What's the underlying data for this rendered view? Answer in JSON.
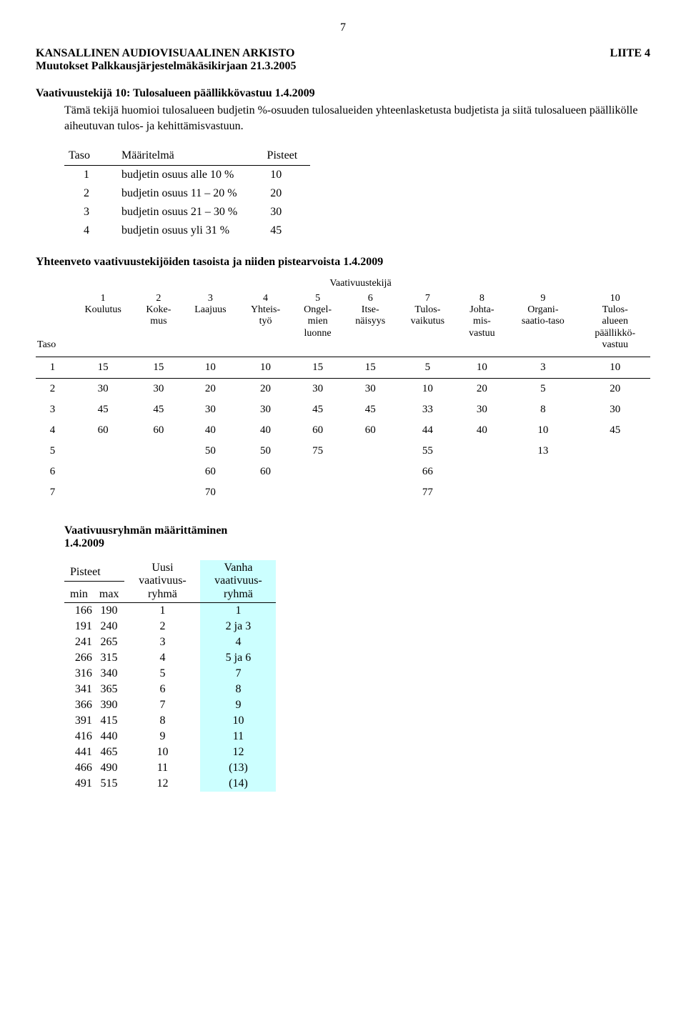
{
  "page_number": "7",
  "header": {
    "org": "KANSALLINEN AUDIOVISUAALINEN ARKISTO",
    "annex": "LIITE 4",
    "subtitle": "Muutokset Palkkausjärjestelmäkäsikirjaan 21.3.2005"
  },
  "section": {
    "heading": "Vaativuustekijä 10: Tulosalueen päällikkövastuu 1.4.2009",
    "body": "Tämä tekijä huomioi tulosalueen budjetin %-osuuden tulosalueiden yhteenlasketusta budjetista ja siitä tulosalueen päällikölle aiheutuvan tulos- ja kehittämisvastuun."
  },
  "levels_table": {
    "headers": {
      "taso": "Taso",
      "maaritelma": "Määritelmä",
      "pisteet": "Pisteet"
    },
    "rows": [
      {
        "taso": "1",
        "maaritelma": "budjetin osuus alle 10 %",
        "pisteet": "10"
      },
      {
        "taso": "2",
        "maaritelma": "budjetin osuus 11 – 20 %",
        "pisteet": "20"
      },
      {
        "taso": "3",
        "maaritelma": "budjetin osuus 21 – 30 %",
        "pisteet": "30"
      },
      {
        "taso": "4",
        "maaritelma": "budjetin osuus yli 31 %",
        "pisteet": "45"
      }
    ]
  },
  "summary": {
    "heading": "Yhteenveto vaativuustekijöiden tasoista ja niiden pistearvoista 1.4.2009",
    "group_label": "Vaativuustekijä",
    "taso_label": "Taso",
    "columns": [
      {
        "num": "1",
        "label": "Koulutus"
      },
      {
        "num": "2",
        "label": "Koke-\nmus"
      },
      {
        "num": "3",
        "label": "Laajuus"
      },
      {
        "num": "4",
        "label": "Yhteis-\ntyö"
      },
      {
        "num": "5",
        "label": "Ongel-\nmien\nluonne"
      },
      {
        "num": "6",
        "label": "Itse-\nnäisyys"
      },
      {
        "num": "7",
        "label": "Tulos-\nvaikutus"
      },
      {
        "num": "8",
        "label": "Johta-\nmis-\nvastuu"
      },
      {
        "num": "9",
        "label": "Organi-\nsaatio-taso"
      },
      {
        "num": "10",
        "label": "Tulos-\nalueen\npäällikkö-\nvastuu"
      }
    ],
    "rows": [
      {
        "taso": "1",
        "vals": [
          "15",
          "15",
          "10",
          "10",
          "15",
          "15",
          "5",
          "10",
          "3",
          "10"
        ]
      },
      {
        "taso": "2",
        "vals": [
          "30",
          "30",
          "20",
          "20",
          "30",
          "30",
          "10",
          "20",
          "5",
          "20"
        ]
      },
      {
        "taso": "3",
        "vals": [
          "45",
          "45",
          "30",
          "30",
          "45",
          "45",
          "33",
          "30",
          "8",
          "30"
        ]
      },
      {
        "taso": "4",
        "vals": [
          "60",
          "60",
          "40",
          "40",
          "60",
          "60",
          "44",
          "40",
          "10",
          "45"
        ]
      },
      {
        "taso": "5",
        "vals": [
          "",
          "",
          "50",
          "50",
          "75",
          "",
          "55",
          "",
          "13",
          ""
        ]
      },
      {
        "taso": "6",
        "vals": [
          "",
          "",
          "60",
          "60",
          "",
          "",
          "66",
          "",
          "",
          ""
        ]
      },
      {
        "taso": "7",
        "vals": [
          "",
          "",
          "70",
          "",
          "",
          "",
          "77",
          "",
          "",
          ""
        ]
      }
    ]
  },
  "group_spec": {
    "title": "Vaativuusryhmän määrittäminen",
    "date": "1.4.2009",
    "headers": {
      "pisteet": "Pisteet",
      "min": "min",
      "max": "max",
      "uusi": "Uusi\nvaativuus-\nryhmä",
      "vanha": "Vanha\nvaativuus-\nryhmä"
    },
    "rows": [
      {
        "min": "166",
        "max": "190",
        "uusi": "1",
        "vanha": "1"
      },
      {
        "min": "191",
        "max": "240",
        "uusi": "2",
        "vanha": "2 ja 3"
      },
      {
        "min": "241",
        "max": "265",
        "uusi": "3",
        "vanha": "4"
      },
      {
        "min": "266",
        "max": "315",
        "uusi": "4",
        "vanha": "5 ja 6"
      },
      {
        "min": "316",
        "max": "340",
        "uusi": "5",
        "vanha": "7"
      },
      {
        "min": "341",
        "max": "365",
        "uusi": "6",
        "vanha": "8"
      },
      {
        "min": "366",
        "max": "390",
        "uusi": "7",
        "vanha": "9"
      },
      {
        "min": "391",
        "max": "415",
        "uusi": "8",
        "vanha": "10"
      },
      {
        "min": "416",
        "max": "440",
        "uusi": "9",
        "vanha": "11"
      },
      {
        "min": "441",
        "max": "465",
        "uusi": "10",
        "vanha": "12"
      },
      {
        "min": "466",
        "max": "490",
        "uusi": "11",
        "vanha": "(13)"
      },
      {
        "min": "491",
        "max": "515",
        "uusi": "12",
        "vanha": "(14)"
      }
    ],
    "highlight_color": "#ccffff"
  }
}
